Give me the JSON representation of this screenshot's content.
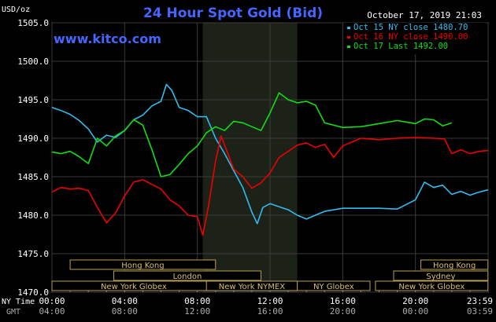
{
  "chart_data": {
    "type": "line",
    "title": "24 Hour Spot Gold (Bid)",
    "ylabel": "USD/oz",
    "watermark": "www.kitco.com",
    "timestamp": "October 17, 2019 21:03",
    "ylim": [
      1470,
      1505
    ],
    "yticks": [
      "1505.0",
      "1500.0",
      "1495.0",
      "1490.0",
      "1485.0",
      "1480.0",
      "1475.0",
      "1470.0"
    ],
    "ytick_values": [
      1505,
      1500,
      1495,
      1490,
      1485,
      1480,
      1475,
      1470
    ],
    "x_axis": {
      "row1_label": "NY Time",
      "row2_label": "GMT",
      "ny_ticks": [
        "00:00",
        "04:00",
        "08:00",
        "12:00",
        "16:00",
        "20:00",
        "23:59"
      ],
      "gmt_ticks": [
        "04:00",
        "08:00",
        "12:00",
        "16:00",
        "20:00",
        "00:00",
        "03:59"
      ],
      "tick_hours": [
        0,
        4,
        8,
        12,
        16,
        20,
        24
      ]
    },
    "series": [
      {
        "name": "Oct 15",
        "legend": "Oct 15 NY close 1480.70",
        "color": "#33bbee",
        "points": [
          [
            0,
            1494.0
          ],
          [
            0.5,
            1493.6
          ],
          [
            1,
            1493.1
          ],
          [
            1.5,
            1492.3
          ],
          [
            2,
            1491.2
          ],
          [
            2.5,
            1489.5
          ],
          [
            3,
            1490.4
          ],
          [
            3.5,
            1490.1
          ],
          [
            4,
            1491.0
          ],
          [
            4.5,
            1492.4
          ],
          [
            5,
            1493.0
          ],
          [
            5.5,
            1494.2
          ],
          [
            6,
            1494.8
          ],
          [
            6.3,
            1497.0
          ],
          [
            6.6,
            1496.2
          ],
          [
            7,
            1494.0
          ],
          [
            7.5,
            1493.6
          ],
          [
            8,
            1492.8
          ],
          [
            8.5,
            1492.8
          ],
          [
            9,
            1490.0
          ],
          [
            9.5,
            1488.0
          ],
          [
            10,
            1485.8
          ],
          [
            10.5,
            1483.6
          ],
          [
            11,
            1480.4
          ],
          [
            11.3,
            1478.9
          ],
          [
            11.6,
            1481.0
          ],
          [
            12,
            1481.5
          ],
          [
            12.5,
            1481.1
          ],
          [
            13,
            1480.7
          ],
          [
            13.5,
            1480.0
          ],
          [
            14,
            1479.5
          ],
          [
            14.5,
            1480.0
          ],
          [
            15,
            1480.5
          ],
          [
            16,
            1480.9
          ],
          [
            17,
            1480.9
          ],
          [
            18,
            1480.9
          ],
          [
            19,
            1480.8
          ],
          [
            20,
            1482.0
          ],
          [
            20.5,
            1484.3
          ],
          [
            21,
            1483.6
          ],
          [
            21.5,
            1483.9
          ],
          [
            22,
            1482.7
          ],
          [
            22.5,
            1483.1
          ],
          [
            23,
            1482.6
          ],
          [
            23.5,
            1483.0
          ],
          [
            23.99,
            1483.3
          ]
        ]
      },
      {
        "name": "Oct 16",
        "legend": "Oct 16 NY close 1490.00",
        "color": "#ee0000",
        "points": [
          [
            0,
            1483.0
          ],
          [
            0.5,
            1483.6
          ],
          [
            1,
            1483.4
          ],
          [
            1.5,
            1483.5
          ],
          [
            2,
            1483.2
          ],
          [
            2.5,
            1481.0
          ],
          [
            3,
            1479.0
          ],
          [
            3.5,
            1480.3
          ],
          [
            4,
            1482.5
          ],
          [
            4.5,
            1484.3
          ],
          [
            5,
            1484.6
          ],
          [
            5.5,
            1484.0
          ],
          [
            6,
            1483.4
          ],
          [
            6.5,
            1482.0
          ],
          [
            7,
            1481.2
          ],
          [
            7.5,
            1480.0
          ],
          [
            8,
            1479.8
          ],
          [
            8.3,
            1477.4
          ],
          [
            8.6,
            1481.0
          ],
          [
            9,
            1487.0
          ],
          [
            9.3,
            1490.3
          ],
          [
            9.6,
            1488.5
          ],
          [
            10,
            1486.0
          ],
          [
            10.5,
            1485.0
          ],
          [
            11,
            1483.5
          ],
          [
            11.5,
            1484.2
          ],
          [
            12,
            1485.5
          ],
          [
            12.5,
            1487.5
          ],
          [
            13,
            1488.3
          ],
          [
            13.5,
            1489.1
          ],
          [
            14,
            1489.4
          ],
          [
            14.5,
            1488.8
          ],
          [
            15,
            1489.2
          ],
          [
            15.5,
            1487.5
          ],
          [
            16,
            1489.0
          ],
          [
            17,
            1490.0
          ],
          [
            18,
            1489.8
          ],
          [
            19,
            1490.0
          ],
          [
            20,
            1490.1
          ],
          [
            21,
            1490.0
          ],
          [
            21.6,
            1489.9
          ],
          [
            22,
            1488.0
          ],
          [
            22.5,
            1488.5
          ],
          [
            23,
            1488.0
          ],
          [
            23.5,
            1488.3
          ],
          [
            23.99,
            1488.4
          ]
        ]
      },
      {
        "name": "Oct 17",
        "legend": "Oct 17 Last 1492.00",
        "color": "#11dd11",
        "points": [
          [
            0,
            1488.2
          ],
          [
            0.5,
            1488.0
          ],
          [
            1,
            1488.3
          ],
          [
            1.5,
            1487.6
          ],
          [
            2,
            1486.7
          ],
          [
            2.5,
            1490.0
          ],
          [
            3,
            1489.0
          ],
          [
            3.5,
            1490.3
          ],
          [
            4,
            1491.0
          ],
          [
            4.5,
            1492.4
          ],
          [
            5,
            1491.7
          ],
          [
            5.5,
            1488.5
          ],
          [
            6,
            1485.0
          ],
          [
            6.5,
            1485.3
          ],
          [
            7,
            1486.6
          ],
          [
            7.5,
            1488.0
          ],
          [
            8,
            1489.0
          ],
          [
            8.5,
            1490.7
          ],
          [
            9,
            1491.5
          ],
          [
            9.5,
            1491.0
          ],
          [
            10,
            1492.2
          ],
          [
            10.5,
            1492.0
          ],
          [
            11,
            1491.5
          ],
          [
            11.5,
            1491.0
          ],
          [
            12,
            1493.3
          ],
          [
            12.5,
            1495.9
          ],
          [
            13,
            1495.0
          ],
          [
            13.5,
            1494.6
          ],
          [
            14,
            1494.8
          ],
          [
            14.5,
            1494.3
          ],
          [
            15,
            1492.0
          ],
          [
            16,
            1491.4
          ],
          [
            17,
            1491.5
          ],
          [
            18,
            1491.9
          ],
          [
            19,
            1492.3
          ],
          [
            20,
            1491.9
          ],
          [
            20.5,
            1492.5
          ],
          [
            21,
            1492.4
          ],
          [
            21.5,
            1491.6
          ],
          [
            22,
            1492.0
          ]
        ]
      }
    ],
    "sessions": [
      {
        "label": "Hong Kong",
        "start": 1,
        "end": 9,
        "row": 0
      },
      {
        "label": "London",
        "start": 3.4,
        "end": 11.5,
        "row": 1
      },
      {
        "label": "New York Globex",
        "start": 0,
        "end": 9,
        "row": 2
      },
      {
        "label": "New York NYMEX",
        "start": 8.5,
        "end": 13.5,
        "row": 2
      },
      {
        "label": "NY Globex",
        "start": 13.5,
        "end": 17.5,
        "row": 2
      },
      {
        "label": "Hong Kong",
        "start": 20.3,
        "end": 23.99,
        "row": 0
      },
      {
        "label": "Sydney",
        "start": 18.8,
        "end": 23.99,
        "row": 1
      },
      {
        "label": "New York Globex",
        "start": 17.8,
        "end": 23.99,
        "row": 2
      }
    ],
    "highlight": {
      "start": 8.3,
      "end": 13.5
    }
  }
}
